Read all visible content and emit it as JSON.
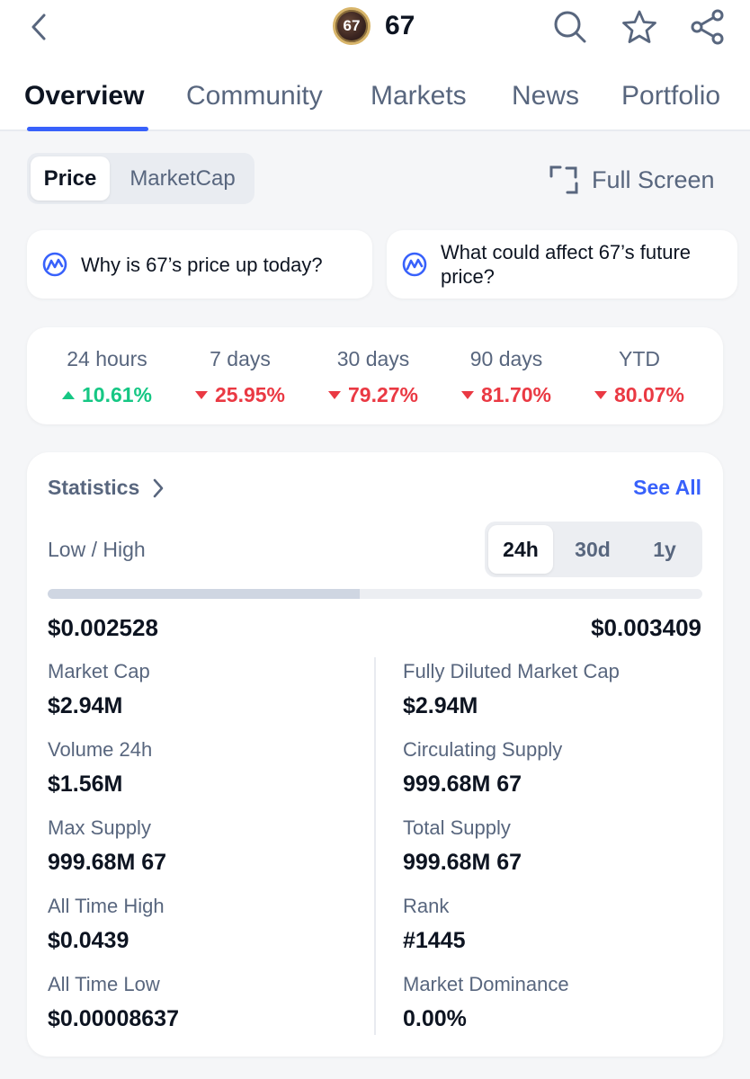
{
  "header": {
    "coin_logo_text": "67",
    "title": "67",
    "icons": [
      "back-arrow-icon",
      "search-icon",
      "star-icon",
      "share-icon"
    ]
  },
  "tabs": [
    {
      "label": "Overview",
      "active": true
    },
    {
      "label": "Community",
      "active": false
    },
    {
      "label": "Markets",
      "active": false
    },
    {
      "label": "News",
      "active": false
    },
    {
      "label": "Portfolio",
      "active": false
    }
  ],
  "chart_toggle": {
    "price": "Price",
    "marketcap": "MarketCap",
    "selected": "Price"
  },
  "fullscreen_label": "Full Screen",
  "ai_questions": [
    {
      "text": "Why is 67’s price up today?"
    },
    {
      "text": "What could affect 67’s future price?"
    }
  ],
  "performance": [
    {
      "label": "24 hours",
      "value": "10.61%",
      "direction": "up"
    },
    {
      "label": "7 days",
      "value": "25.95%",
      "direction": "down"
    },
    {
      "label": "30 days",
      "value": "79.27%",
      "direction": "down"
    },
    {
      "label": "90 days",
      "value": "81.70%",
      "direction": "down"
    },
    {
      "label": "YTD",
      "value": "80.07%",
      "direction": "down"
    }
  ],
  "statistics": {
    "title": "Statistics",
    "see_all": "See All",
    "low_high_label": "Low / High",
    "ranges": [
      "24h",
      "30d",
      "1y"
    ],
    "selected_range": "24h",
    "low": "$0.002528",
    "high": "$0.003409",
    "range_fill_fraction": 0.477,
    "left": [
      {
        "label": "Market Cap",
        "value": "$2.94M"
      },
      {
        "label": "Volume 24h",
        "value": "$1.56M"
      },
      {
        "label": "Max Supply",
        "value": "999.68M 67"
      },
      {
        "label": "All Time High",
        "value": "$0.0439"
      },
      {
        "label": "All Time Low",
        "value": "$0.00008637"
      }
    ],
    "right": [
      {
        "label": "Fully Diluted Market Cap",
        "value": "$2.94M"
      },
      {
        "label": "Circulating Supply",
        "value": "999.68M 67"
      },
      {
        "label": "Total Supply",
        "value": "999.68M 67"
      },
      {
        "label": "Rank",
        "value": "#1445"
      },
      {
        "label": "Market Dominance",
        "value": "0.00%"
      }
    ]
  },
  "colors": {
    "accent": "#3861fb",
    "up": "#16c784",
    "down": "#ea3943",
    "muted_text": "#58667e"
  }
}
